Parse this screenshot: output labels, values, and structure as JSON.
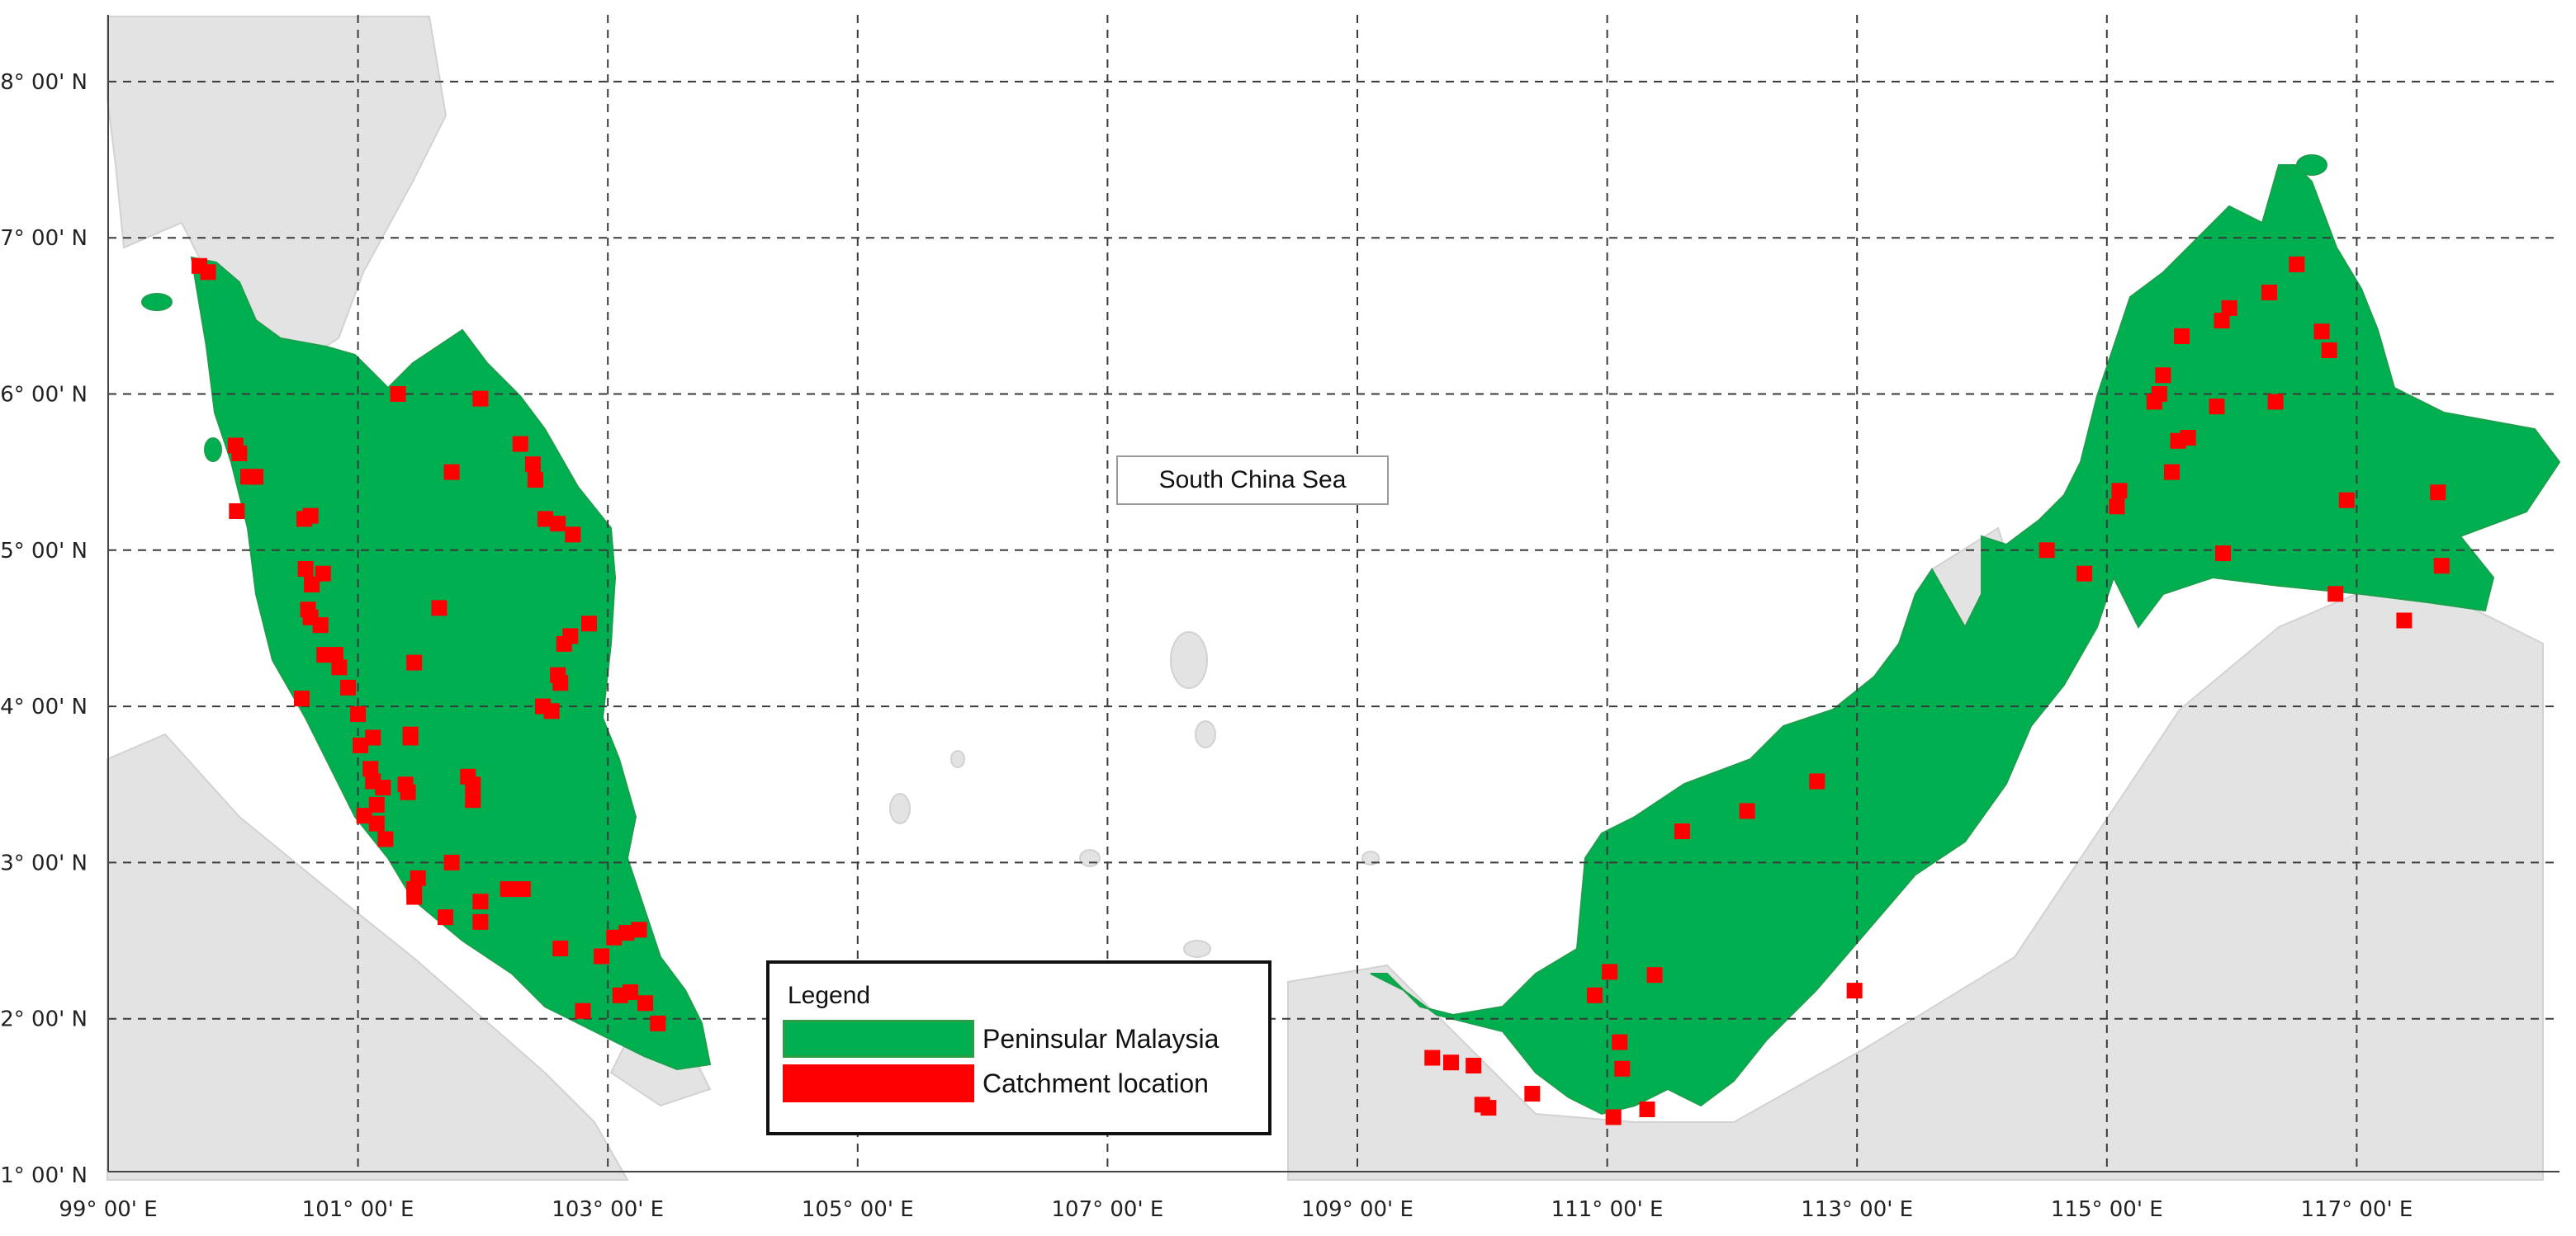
{
  "map": {
    "sea_label": "South China Sea",
    "colors": {
      "land": "#00b050",
      "land_edge": "#1aa04c",
      "catchment": "#ff0000",
      "background_land": "#e4e4e4",
      "grid": "#3a3a3a"
    },
    "longitude_ticks": [
      "99° 00' E",
      "101° 00' E",
      "103° 00' E",
      "105° 00' E",
      "107° 00' E",
      "109° 00' E",
      "111° 00' E",
      "113° 00' E",
      "115° 00' E",
      "117° 00' E"
    ],
    "latitude_ticks": [
      "8° 00' N",
      "7° 00' N",
      "6° 00' N",
      "5° 00' N",
      "4° 00' N",
      "3° 00' N",
      "2° 00' N",
      "1° 00' N"
    ],
    "legend": {
      "title": "Legend",
      "items": [
        {
          "label": "Peninsular Malaysia",
          "color": "#00b050"
        },
        {
          "label": "Catchment location",
          "color": "#ff0000"
        }
      ]
    },
    "catchments": [
      [
        99.73,
        6.82
      ],
      [
        99.8,
        6.78
      ],
      [
        100.02,
        5.67
      ],
      [
        100.05,
        5.62
      ],
      [
        100.12,
        5.47
      ],
      [
        100.18,
        5.47
      ],
      [
        100.03,
        5.25
      ],
      [
        100.57,
        5.2
      ],
      [
        100.62,
        5.22
      ],
      [
        100.58,
        4.88
      ],
      [
        100.72,
        4.85
      ],
      [
        100.63,
        4.78
      ],
      [
        100.6,
        4.62
      ],
      [
        100.62,
        4.57
      ],
      [
        100.7,
        4.52
      ],
      [
        100.73,
        4.33
      ],
      [
        100.82,
        4.33
      ],
      [
        100.85,
        4.25
      ],
      [
        100.92,
        4.12
      ],
      [
        100.55,
        4.05
      ],
      [
        101.0,
        3.95
      ],
      [
        101.02,
        3.75
      ],
      [
        101.12,
        3.8
      ],
      [
        101.1,
        3.6
      ],
      [
        101.12,
        3.52
      ],
      [
        101.2,
        3.48
      ],
      [
        101.15,
        3.37
      ],
      [
        101.05,
        3.3
      ],
      [
        101.15,
        3.25
      ],
      [
        101.22,
        3.15
      ],
      [
        101.38,
        3.5
      ],
      [
        101.4,
        3.45
      ],
      [
        101.42,
        3.8
      ],
      [
        101.42,
        3.82
      ],
      [
        101.32,
        6.0
      ],
      [
        101.75,
        5.5
      ],
      [
        101.98,
        5.97
      ],
      [
        101.65,
        4.63
      ],
      [
        101.45,
        4.28
      ],
      [
        102.3,
        5.68
      ],
      [
        102.4,
        5.55
      ],
      [
        102.42,
        5.45
      ],
      [
        102.5,
        5.2
      ],
      [
        102.6,
        5.17
      ],
      [
        102.72,
        5.1
      ],
      [
        102.85,
        4.53
      ],
      [
        102.7,
        4.45
      ],
      [
        102.65,
        4.4
      ],
      [
        102.6,
        4.2
      ],
      [
        102.62,
        4.15
      ],
      [
        102.48,
        4.0
      ],
      [
        102.55,
        3.97
      ],
      [
        101.88,
        3.55
      ],
      [
        101.92,
        3.5
      ],
      [
        101.92,
        3.4
      ],
      [
        101.75,
        3.0
      ],
      [
        101.48,
        2.9
      ],
      [
        101.45,
        2.83
      ],
      [
        101.45,
        2.78
      ],
      [
        101.7,
        2.65
      ],
      [
        101.98,
        2.75
      ],
      [
        101.98,
        2.62
      ],
      [
        102.2,
        2.83
      ],
      [
        102.32,
        2.83
      ],
      [
        102.62,
        2.45
      ],
      [
        102.8,
        2.05
      ],
      [
        102.95,
        2.4
      ],
      [
        103.05,
        2.52
      ],
      [
        103.15,
        2.55
      ],
      [
        103.25,
        2.57
      ],
      [
        103.1,
        2.15
      ],
      [
        103.18,
        2.17
      ],
      [
        103.3,
        2.1
      ],
      [
        103.4,
        1.97
      ],
      [
        109.6,
        1.75
      ],
      [
        109.75,
        1.72
      ],
      [
        109.93,
        1.7
      ],
      [
        110.0,
        1.45
      ],
      [
        110.05,
        1.43
      ],
      [
        110.4,
        1.52
      ],
      [
        110.9,
        2.15
      ],
      [
        111.02,
        2.3
      ],
      [
        111.1,
        1.85
      ],
      [
        111.12,
        1.68
      ],
      [
        111.05,
        1.37
      ],
      [
        111.32,
        1.42
      ],
      [
        111.38,
        2.28
      ],
      [
        111.6,
        3.2
      ],
      [
        112.12,
        3.33
      ],
      [
        112.68,
        3.52
      ],
      [
        112.98,
        2.18
      ],
      [
        114.52,
        5.0
      ],
      [
        114.82,
        4.85
      ],
      [
        115.08,
        5.28
      ],
      [
        115.1,
        5.38
      ],
      [
        115.38,
        5.95
      ],
      [
        115.42,
        6.0
      ],
      [
        115.45,
        6.12
      ],
      [
        115.52,
        5.5
      ],
      [
        115.57,
        5.7
      ],
      [
        115.65,
        5.72
      ],
      [
        115.6,
        6.37
      ],
      [
        115.88,
        5.92
      ],
      [
        115.93,
        4.98
      ],
      [
        115.92,
        6.47
      ],
      [
        115.98,
        6.55
      ],
      [
        116.3,
        6.65
      ],
      [
        116.35,
        5.95
      ],
      [
        116.52,
        6.83
      ],
      [
        116.72,
        6.4
      ],
      [
        116.78,
        6.28
      ],
      [
        116.83,
        4.72
      ],
      [
        116.92,
        5.32
      ],
      [
        117.38,
        4.55
      ],
      [
        117.65,
        5.37
      ],
      [
        117.68,
        4.9
      ]
    ]
  }
}
